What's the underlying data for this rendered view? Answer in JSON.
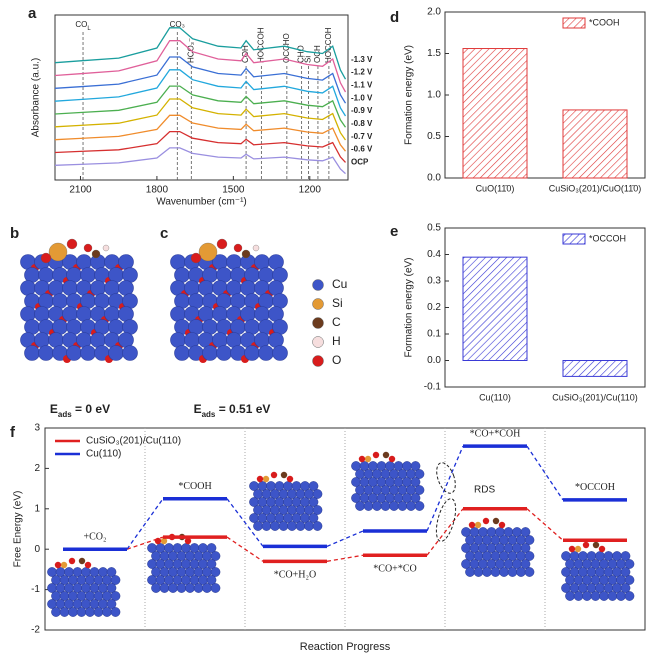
{
  "chart_data": [
    {
      "type": "line",
      "panel_label": "a",
      "x_label": "Wavenumber (cm⁻¹)",
      "y_label": "Absorbance (a.u.)",
      "x": [
        2200,
        2100,
        1950,
        1800,
        1750,
        1710,
        1660,
        1560,
        1470,
        1450,
        1420,
        1300,
        1210,
        1150,
        1110,
        1080,
        1060
      ],
      "xlim": [
        2200,
        1050
      ],
      "xticks": [
        2100,
        1800,
        1500,
        1200
      ],
      "ylim": [
        0,
        9
      ],
      "series": [
        {
          "name": "-1.3 V",
          "color": "#1a9e9e",
          "values": [
            6.4,
            6.5,
            6.65,
            7.2,
            8.3,
            8.3,
            7.7,
            7.3,
            7.2,
            7.6,
            7.1,
            7.3,
            7.0,
            6.9,
            7.3,
            6.0,
            5.5
          ]
        },
        {
          "name": "-1.2 V",
          "color": "#e0609a",
          "values": [
            5.7,
            5.8,
            5.95,
            6.5,
            7.6,
            7.6,
            7.0,
            6.6,
            6.5,
            6.9,
            6.4,
            6.6,
            6.3,
            6.2,
            6.6,
            5.3,
            4.8
          ]
        },
        {
          "name": "-1.1 V",
          "color": "#3a6fd5",
          "values": [
            5.0,
            5.09,
            5.23,
            5.72,
            6.71,
            6.71,
            6.17,
            5.81,
            5.72,
            6.08,
            5.63,
            5.81,
            5.54,
            5.45,
            5.81,
            4.64,
            4.19
          ]
        },
        {
          "name": "-1.0 V",
          "color": "#22a8dd",
          "values": [
            4.3,
            4.39,
            4.53,
            5.02,
            6.01,
            6.01,
            5.47,
            5.11,
            5.02,
            5.38,
            4.93,
            5.11,
            4.84,
            4.75,
            5.11,
            3.94,
            3.49
          ]
        },
        {
          "name": "-0.9 V",
          "color": "#4caf50",
          "values": [
            3.6,
            3.68,
            3.8,
            4.24,
            5.12,
            5.12,
            4.64,
            4.32,
            4.24,
            4.56,
            4.16,
            4.32,
            4.08,
            4.0,
            4.32,
            3.28,
            2.88
          ]
        },
        {
          "name": "-0.8 V",
          "color": "#d4b200",
          "values": [
            2.9,
            2.98,
            3.1,
            3.54,
            4.42,
            4.42,
            3.94,
            3.62,
            3.54,
            3.86,
            3.46,
            3.62,
            3.38,
            3.3,
            3.62,
            2.58,
            2.18
          ]
        },
        {
          "name": "-0.7 V",
          "color": "#f08c2c",
          "values": [
            2.2,
            2.27,
            2.38,
            2.76,
            3.53,
            3.53,
            3.11,
            2.83,
            2.76,
            3.04,
            2.69,
            2.83,
            2.62,
            2.55,
            2.83,
            1.92,
            1.57
          ]
        },
        {
          "name": "-0.6 V",
          "color": "#d62f2f",
          "values": [
            1.5,
            1.56,
            1.65,
            1.98,
            2.64,
            2.64,
            2.28,
            2.04,
            1.98,
            2.22,
            1.92,
            2.04,
            1.86,
            1.8,
            2.04,
            1.26,
            0.96
          ]
        },
        {
          "name": "OCP",
          "color": "#9a8fe0",
          "values": [
            0.8,
            0.85,
            0.93,
            1.2,
            1.75,
            1.75,
            1.45,
            1.25,
            1.2,
            1.4,
            1.15,
            1.25,
            1.1,
            1.05,
            1.25,
            0.6,
            0.35
          ]
        }
      ],
      "annotations": [
        {
          "text": "CO",
          "sub": "L",
          "x": 2090,
          "vertical": false
        },
        {
          "text": "CO₃",
          "x": 1720,
          "vertical": false
        },
        {
          "text": "HCO₃⁻",
          "x": 1665,
          "vertical": true
        },
        {
          "text": "COH",
          "x": 1450,
          "vertical": true
        },
        {
          "text": "HOCCOH",
          "x": 1390,
          "vertical": true
        },
        {
          "text": "OCCHO",
          "x": 1290,
          "vertical": true
        },
        {
          "text": "CHO",
          "x": 1232,
          "vertical": true
        },
        {
          "text": "Si",
          "x": 1205,
          "vertical": true
        },
        {
          "text": "OCH",
          "x": 1168,
          "vertical": true
        },
        {
          "text": "HOCCOH",
          "x": 1125,
          "vertical": true
        }
      ]
    },
    {
      "type": "bar",
      "panel_label": "d",
      "y_label": "Formation energy (eV)",
      "categories": [
        "CuO(11̄0)",
        "CuSiO₃(201)/CuO(11̄0)"
      ],
      "series": [
        {
          "name": "*COOH",
          "color": "#e03a3a",
          "values": [
            1.56,
            0.82
          ]
        }
      ],
      "ylim": [
        0,
        2
      ],
      "yticks": [
        {
          "value": 0,
          "label": "0.0"
        },
        0.5,
        {
          "value": 1,
          "label": "1.0"
        },
        1.5,
        {
          "value": 2,
          "label": "2.0"
        }
      ]
    },
    {
      "type": "bar",
      "panel_label": "e",
      "y_label": "Formation energy (eV)",
      "categories": [
        "Cu(110)",
        "CuSiO₃(201)/Cu(110)"
      ],
      "series": [
        {
          "name": "*OCCOH",
          "color": "#3a3ad6",
          "values": [
            0.39,
            -0.06
          ]
        }
      ],
      "ylim": [
        -0.1,
        0.5
      ],
      "yticks": [
        -0.1,
        {
          "value": 0,
          "label": "0.0"
        },
        0.1,
        0.2,
        0.3,
        0.4,
        0.5
      ]
    },
    {
      "type": "energy",
      "panel_label": "f",
      "y_label": "Free Energy (eV)",
      "x_label": "Reaction Progress",
      "categories": [
        "+CO₂",
        "*COOH",
        "*CO+H₂O",
        "*CO+*CO",
        "*CO+*COH",
        "*OCCOH"
      ],
      "series": [
        {
          "name": "CuSiO₃(201)/Cu(110)",
          "color": "#e02020",
          "values": [
            0,
            0.3,
            -0.3,
            -0.15,
            1.0,
            0.22
          ]
        },
        {
          "name": "Cu(110)",
          "color": "#1a2fd6",
          "values": [
            0,
            1.25,
            0.07,
            0.45,
            2.55,
            1.22
          ]
        }
      ],
      "ylim": [
        -2,
        3
      ],
      "yticks": [
        -2,
        -1,
        0,
        1,
        2,
        3
      ],
      "annotation": "RDS"
    }
  ],
  "structures": {
    "label_b": "b",
    "label_c": "c",
    "caption_b": [
      "E",
      "ads",
      " = 0 eV"
    ],
    "caption_c": [
      "E",
      "ads",
      " = 0.51 eV"
    ],
    "legend": [
      {
        "name": "Cu",
        "color": "#3d55c8"
      },
      {
        "name": "Si",
        "color": "#e39a35"
      },
      {
        "name": "C",
        "color": "#6b3b1e"
      },
      {
        "name": "H",
        "color": "#f6dede"
      },
      {
        "name": "O",
        "color": "#d81c1c"
      }
    ]
  }
}
